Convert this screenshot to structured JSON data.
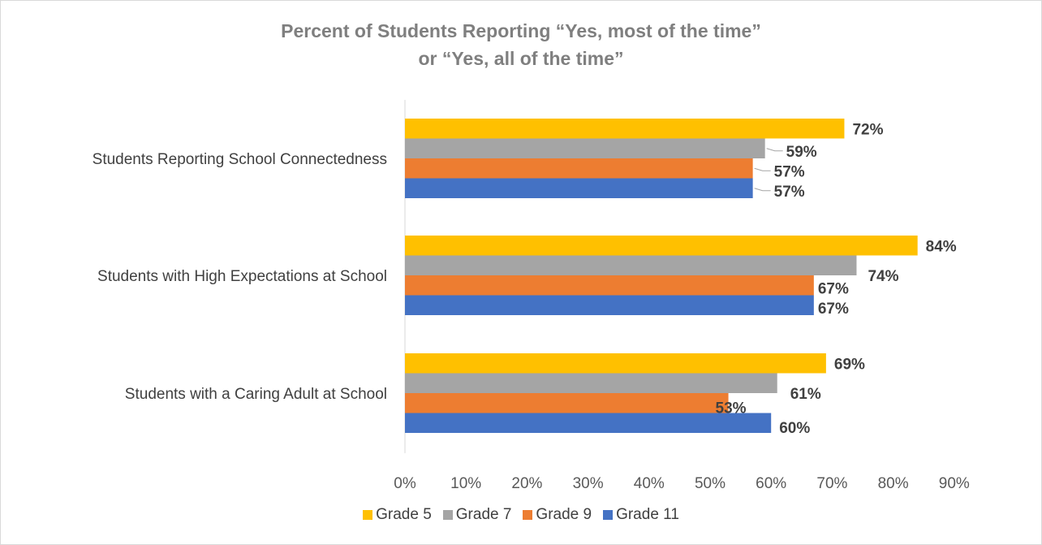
{
  "chart_data": {
    "type": "bar",
    "orientation": "horizontal",
    "title": [
      "Percent of Students Reporting “Yes, most of the time”",
      "or “Yes, all of the time”"
    ],
    "categories": [
      "Students Reporting School Connectedness",
      "Students with High Expectations at School",
      "Students with a Caring Adult at School"
    ],
    "series": [
      {
        "name": "Grade 5",
        "color": "#FFC000",
        "values": [
          72,
          84,
          69
        ]
      },
      {
        "name": "Grade 7",
        "color": "#A5A5A5",
        "values": [
          59,
          74,
          61
        ]
      },
      {
        "name": "Grade 9",
        "color": "#ED7D31",
        "values": [
          57,
          67,
          53
        ]
      },
      {
        "name": "Grade 11",
        "color": "#4472C4",
        "values": [
          57,
          67,
          60
        ]
      }
    ],
    "data_labels": [
      [
        "72%",
        "84%",
        "69%"
      ],
      [
        "59%",
        "74%",
        "61%"
      ],
      [
        "57%",
        "67%",
        "53%"
      ],
      [
        "57%",
        "67%",
        "60%"
      ]
    ],
    "xlim": [
      0,
      90
    ],
    "xticks": [
      "0%",
      "10%",
      "20%",
      "30%",
      "40%",
      "50%",
      "60%",
      "70%",
      "80%",
      "90%"
    ],
    "grid": false,
    "legend_position": "bottom"
  }
}
